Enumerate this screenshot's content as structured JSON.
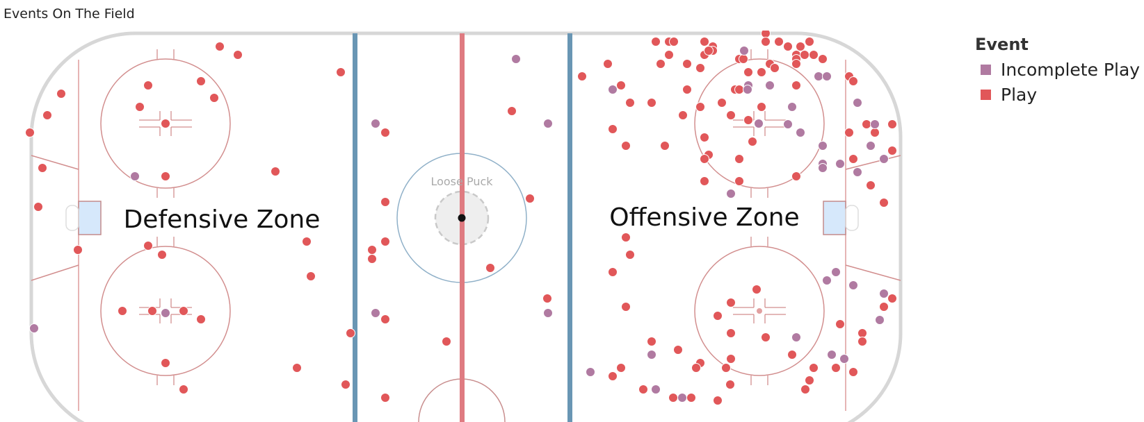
{
  "title": "Events On The Field",
  "legend": {
    "title": "Event",
    "items": [
      {
        "label": "Incomplete Play",
        "color": "#B07AA1"
      },
      {
        "label": "Play",
        "color": "#E15759"
      }
    ]
  },
  "rink_labels": {
    "left_zone": "Defensive Zone",
    "right_zone": "Offensive Zone",
    "center": "Loose Puck"
  },
  "chart_data": {
    "type": "scatter",
    "title": "Events On The Field",
    "legend_position": "top-right",
    "grid": false,
    "series": [
      {
        "name": "Play",
        "color": "#E15759",
        "points": [
          [
            316,
            67
          ],
          [
            342,
            79
          ],
          [
            88,
            135
          ],
          [
            68,
            166
          ],
          [
            43,
            191
          ],
          [
            213,
            123
          ],
          [
            289,
            117
          ],
          [
            308,
            141
          ],
          [
            201,
            154
          ],
          [
            238,
            178
          ],
          [
            61,
            242
          ],
          [
            238,
            254
          ],
          [
            55,
            298
          ],
          [
            396,
            247
          ],
          [
            112,
            360
          ],
          [
            213,
            354
          ],
          [
            233,
            367
          ],
          [
            490,
            104
          ],
          [
            441,
            348
          ],
          [
            447,
            398
          ],
          [
            176,
            448
          ],
          [
            219,
            448
          ],
          [
            264,
            448
          ],
          [
            289,
            460
          ],
          [
            238,
            523
          ],
          [
            264,
            561
          ],
          [
            427,
            530
          ],
          [
            497,
            554
          ],
          [
            504,
            480
          ],
          [
            554,
            191
          ],
          [
            554,
            291
          ],
          [
            554,
            348
          ],
          [
            535,
            360
          ],
          [
            535,
            373
          ],
          [
            554,
            460
          ],
          [
            554,
            573
          ],
          [
            736,
            160
          ],
          [
            762,
            286
          ],
          [
            705,
            386
          ],
          [
            787,
            430
          ],
          [
            642,
            492
          ],
          [
            943,
            60
          ],
          [
            962,
            60
          ],
          [
            969,
            60
          ],
          [
            1013,
            60
          ],
          [
            1025,
            67
          ],
          [
            1025,
            73
          ],
          [
            1013,
            79
          ],
          [
            1101,
            48
          ],
          [
            1101,
            60
          ],
          [
            1120,
            60
          ],
          [
            1133,
            67
          ],
          [
            1151,
            67
          ],
          [
            1164,
            60
          ],
          [
            1145,
            79
          ],
          [
            1145,
            85
          ],
          [
            1145,
            92
          ],
          [
            1157,
            79
          ],
          [
            1170,
            79
          ],
          [
            1183,
            85
          ],
          [
            962,
            79
          ],
          [
            950,
            92
          ],
          [
            988,
            92
          ],
          [
            1007,
            98
          ],
          [
            1019,
            73
          ],
          [
            1063,
            85
          ],
          [
            1069,
            85
          ],
          [
            1076,
            104
          ],
          [
            1095,
            104
          ],
          [
            1107,
            92
          ],
          [
            1114,
            98
          ],
          [
            837,
            110
          ],
          [
            874,
            92
          ],
          [
            893,
            123
          ],
          [
            906,
            148
          ],
          [
            937,
            148
          ],
          [
            988,
            129
          ],
          [
            1007,
            154
          ],
          [
            1038,
            148
          ],
          [
            1057,
            129
          ],
          [
            1063,
            129
          ],
          [
            1095,
            154
          ],
          [
            1051,
            166
          ],
          [
            1076,
            173
          ],
          [
            1145,
            123
          ],
          [
            982,
            166
          ],
          [
            881,
            186
          ],
          [
            900,
            210
          ],
          [
            956,
            210
          ],
          [
            1013,
            198
          ],
          [
            1082,
            204
          ],
          [
            1019,
            223
          ],
          [
            1013,
            229
          ],
          [
            1063,
            229
          ],
          [
            1013,
            261
          ],
          [
            1063,
            261
          ],
          [
            1145,
            254
          ],
          [
            1221,
            110
          ],
          [
            1227,
            117
          ],
          [
            1221,
            191
          ],
          [
            1246,
            179
          ],
          [
            1258,
            191
          ],
          [
            1283,
            179
          ],
          [
            1283,
            217
          ],
          [
            1227,
            229
          ],
          [
            1252,
            267
          ],
          [
            1271,
            292
          ],
          [
            900,
            342
          ],
          [
            906,
            367
          ],
          [
            881,
            392
          ],
          [
            900,
            442
          ],
          [
            937,
            492
          ],
          [
            975,
            504
          ],
          [
            1007,
            523
          ],
          [
            1001,
            530
          ],
          [
            1044,
            530
          ],
          [
            1051,
            517
          ],
          [
            1050,
            554
          ],
          [
            1051,
            480
          ],
          [
            1032,
            455
          ],
          [
            1051,
            436
          ],
          [
            1088,
            417
          ],
          [
            1101,
            486
          ],
          [
            1139,
            511
          ],
          [
            1170,
            530
          ],
          [
            1164,
            548
          ],
          [
            1158,
            561
          ],
          [
            1202,
            530
          ],
          [
            1227,
            536
          ],
          [
            1208,
            467
          ],
          [
            1240,
            480
          ],
          [
            1240,
            492
          ],
          [
            1271,
            442
          ],
          [
            1283,
            430
          ],
          [
            881,
            542
          ],
          [
            893,
            530
          ],
          [
            925,
            561
          ],
          [
            968,
            573
          ],
          [
            994,
            573
          ],
          [
            1032,
            577
          ]
        ]
      },
      {
        "name": "Incomplete Play",
        "color": "#B07AA1",
        "points": [
          [
            742,
            85
          ],
          [
            194,
            254
          ],
          [
            49,
            473
          ],
          [
            881,
            129
          ],
          [
            1076,
            123
          ],
          [
            1070,
            73
          ],
          [
            1107,
            123
          ],
          [
            1139,
            154
          ],
          [
            1133,
            179
          ],
          [
            1151,
            191
          ],
          [
            1177,
            110
          ],
          [
            1189,
            110
          ],
          [
            1233,
            148
          ],
          [
            1252,
            210
          ],
          [
            1258,
            179
          ],
          [
            1183,
            210
          ],
          [
            1183,
            236
          ],
          [
            1183,
            242
          ],
          [
            1208,
            236
          ],
          [
            1233,
            248
          ],
          [
            1271,
            229
          ],
          [
            1051,
            279
          ],
          [
            1189,
            404
          ],
          [
            1202,
            392
          ],
          [
            1227,
            411
          ],
          [
            1271,
            423
          ],
          [
            1265,
            461
          ],
          [
            1145,
            486
          ],
          [
            1196,
            511
          ],
          [
            1214,
            517
          ],
          [
            937,
            511
          ],
          [
            849,
            536
          ],
          [
            943,
            561
          ],
          [
            981,
            573
          ],
          [
            1075,
            129
          ],
          [
            1091,
            178
          ],
          [
            540,
            178
          ],
          [
            788,
            178
          ],
          [
            540,
            451
          ],
          [
            788,
            451
          ],
          [
            238,
            451
          ]
        ]
      }
    ]
  }
}
